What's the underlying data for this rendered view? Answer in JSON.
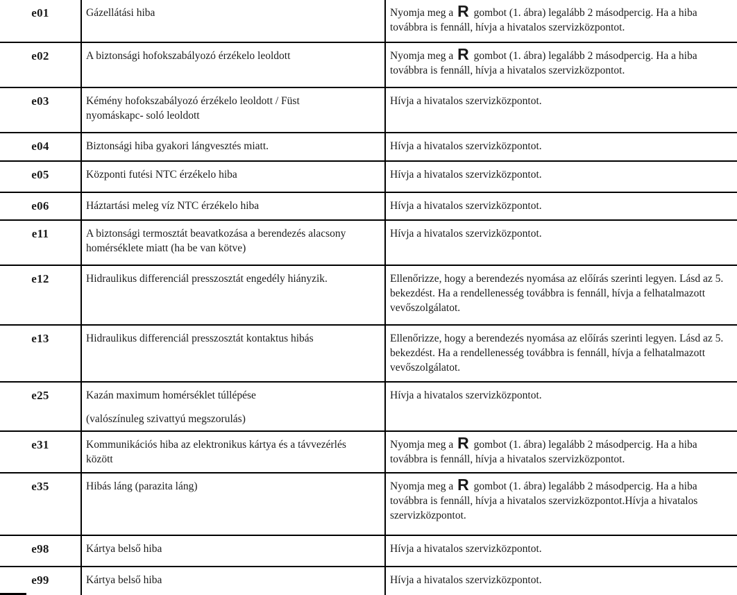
{
  "colors": {
    "ink": "#1a1a1a",
    "border": "#000000",
    "background": "#ffffff"
  },
  "table": {
    "columns": [
      "error-code",
      "error-description",
      "remedy"
    ],
    "rows": [
      {
        "code": "e01",
        "description": [
          "Gázellátási hiba"
        ],
        "remedy": [
          {
            "text": "Nyomja meg a "
          },
          {
            "symbol": "R"
          },
          {
            "text": " gombot (1. ábra) legalább 2 másodpercig. Ha a hiba továbbra is fennáll, hívja a hivatalos szervizközpontot."
          }
        ]
      },
      {
        "code": "e02",
        "description": [
          "A biztonsági hofokszabályozó érzékelo leoldott"
        ],
        "remedy": [
          {
            "text": "Nyomja meg a "
          },
          {
            "symbol": "R"
          },
          {
            "text": " gombot (1. ábra) legalább 2 másodpercig. Ha a hiba továbbra is fennáll, hívja a hivatalos szervizközpontot."
          }
        ]
      },
      {
        "code": "e03",
        "description": [
          "Kémény hofokszabályozó érzékelo leoldott / Füst",
          "nyomáskapc- soló leoldott"
        ],
        "remedy": [
          {
            "text": "Hívja a hivatalos szervizközpontot."
          }
        ]
      },
      {
        "code": "e04",
        "description": [
          "Biztonsági hiba gyakori lángvesztés miatt."
        ],
        "remedy": [
          {
            "text": "Hívja a hivatalos szervizközpontot."
          }
        ]
      },
      {
        "code": "e05",
        "description": [
          "Központi futési NTC érzékelo hiba"
        ],
        "remedy": [
          {
            "text": "Hívja a hivatalos szervizközpontot."
          }
        ]
      },
      {
        "code": "e06",
        "description": [
          "Háztartási meleg víz NTC érzékelo hiba"
        ],
        "remedy": [
          {
            "text": "Hívja a hivatalos szervizközpontot."
          }
        ]
      },
      {
        "code": "e11",
        "description": [
          "A biztonsági termosztát beavatkozása a berendezés alacsony",
          "homérséklete miatt (ha be van kötve)"
        ],
        "remedy": [
          {
            "text": "Hívja a hivatalos szervizközpontot."
          }
        ]
      },
      {
        "code": "e12",
        "description": [
          "Hidraulikus differenciál presszosztát engedély hiányzik."
        ],
        "remedy": [
          {
            "text": "Ellenőrizze, hogy a berendezés nyomása az előírás szerinti legyen. Lásd az 5. bekezdést. Ha  a rendellenesség továbbra is fennáll, hívja a felhatalmazott vevőszolgálatot."
          }
        ]
      },
      {
        "code": "e13",
        "description": [
          "Hidraulikus differenciál presszosztát kontaktus hibás"
        ],
        "remedy": [
          {
            "text": "Ellenőrizze, hogy a berendezés nyomása az előírás szerinti legyen. Lásd az 5. bekezdést. Ha  a rendellenesség továbbra is fennáll, hívja a felhatalmazott vevőszolgálatot."
          }
        ]
      },
      {
        "code": "e25",
        "description": [
          "Kazán maximum homérséklet túllépése",
          "(valószínuleg szivattyú megszorulás)"
        ],
        "description_gap": true,
        "remedy": [
          {
            "text": "Hívja a hivatalos szervizközpontot."
          }
        ]
      },
      {
        "code": "e31",
        "description": [
          "Kommunikációs hiba az elektronikus kártya és a távvezérlés",
          "között"
        ],
        "remedy": [
          {
            "text": "Nyomja meg a "
          },
          {
            "symbol": "R"
          },
          {
            "text": " gombot (1. ábra) legalább 2 másodpercig. Ha a hiba továbbra is fennáll, hívja a hivatalos szervizközpontot."
          }
        ]
      },
      {
        "code": "e35",
        "description": [
          "Hibás láng (parazita láng)"
        ],
        "remedy": [
          {
            "text": "Nyomja meg a "
          },
          {
            "symbol": "R"
          },
          {
            "text": " gombot (1. ábra) legalább 2 másodpercig. Ha a hiba továbbra is fennáll, hívja a hivatalos szervizközpontot.Hívja  a hivatalos szervizközpontot."
          }
        ]
      },
      {
        "code": "e98",
        "description": [
          "Kártya belső hiba"
        ],
        "remedy": [
          {
            "text": "Hívja a hivatalos szervizközpontot."
          }
        ]
      },
      {
        "code": "e99",
        "description": [
          "Kártya belső hiba"
        ],
        "remedy": [
          {
            "text": "Hívja a hivatalos szervizközpontot."
          }
        ]
      }
    ]
  }
}
